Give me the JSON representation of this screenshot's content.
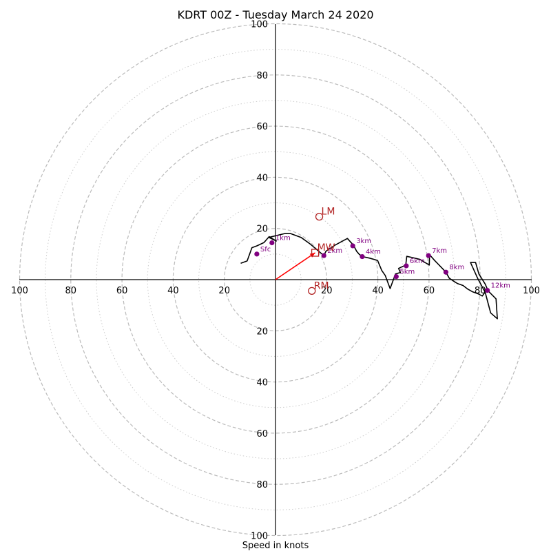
{
  "chart_data": {
    "type": "scatter",
    "subtype": "hodograph",
    "title": "KDRT 00Z - Tuesday March 24 2020",
    "xlabel": "Speed in knots",
    "ylabel": "",
    "units": "knots",
    "range": [
      -100,
      100
    ],
    "ring_major": [
      20,
      40,
      60,
      80,
      100
    ],
    "ring_minor": [
      10,
      30,
      50,
      70,
      90
    ],
    "axis_ticks": {
      "x": [
        "100",
        "80",
        "60",
        "40",
        "20",
        "20",
        "40",
        "60",
        "80",
        "100"
      ],
      "x_values": [
        -100,
        -80,
        -60,
        -40,
        -20,
        20,
        40,
        60,
        80,
        100
      ],
      "y": [
        "100",
        "80",
        "60",
        "40",
        "20",
        "20",
        "40",
        "60",
        "80",
        "100"
      ],
      "y_values": [
        100,
        80,
        60,
        40,
        20,
        -20,
        -40,
        -60,
        -80,
        -100
      ]
    },
    "colors": {
      "trace": "#000000",
      "height_marker": "#800080",
      "motion": "#b22222",
      "shear_vector": "#ff0000",
      "grid": "#bbbbbb"
    },
    "trace": [
      [
        -13.6,
        6.4
      ],
      [
        -11.1,
        7.3
      ],
      [
        -9.2,
        12.5
      ],
      [
        -7.3,
        13.2
      ],
      [
        -4.5,
        14.5
      ],
      [
        -2.5,
        16.8
      ],
      [
        0.3,
        15.1
      ],
      [
        -2.6,
        16.5
      ],
      [
        3.6,
        18.0
      ],
      [
        5.9,
        18.0
      ],
      [
        10.0,
        16.5
      ],
      [
        13.6,
        13.9
      ],
      [
        16.9,
        11.1
      ],
      [
        18.9,
        9.4
      ],
      [
        19.7,
        11.1
      ],
      [
        23.3,
        13.5
      ],
      [
        28.1,
        16.1
      ],
      [
        30.5,
        13.4
      ],
      [
        31.7,
        11.1
      ],
      [
        32.8,
        9.8
      ],
      [
        34.1,
        9.0
      ],
      [
        36.8,
        8.4
      ],
      [
        39.9,
        7.5
      ],
      [
        41.5,
        3.6
      ],
      [
        42.9,
        1.6
      ],
      [
        44.8,
        -3.5
      ],
      [
        46.9,
        2.2
      ],
      [
        48.8,
        2.8
      ],
      [
        48.1,
        4.4
      ],
      [
        50.9,
        5.7
      ],
      [
        51.3,
        9.1
      ],
      [
        53.7,
        8.6
      ],
      [
        56.5,
        7.9
      ],
      [
        58.6,
        6.6
      ],
      [
        60.1,
        5.7
      ],
      [
        60.2,
        9.8
      ],
      [
        62.1,
        7.6
      ],
      [
        65.2,
        4.4
      ],
      [
        66.6,
        2.9
      ],
      [
        67.9,
        0.6
      ],
      [
        69.6,
        -0.6
      ],
      [
        71.1,
        -1.5
      ],
      [
        73.3,
        -2.3
      ],
      [
        75.0,
        -3.6
      ],
      [
        77.1,
        -4.8
      ],
      [
        79.3,
        -5.6
      ],
      [
        80.8,
        -6.4
      ],
      [
        81.9,
        -4.9
      ],
      [
        79.0,
        0.5
      ],
      [
        76.2,
        6.7
      ],
      [
        78.2,
        6.7
      ],
      [
        79.5,
        2.2
      ],
      [
        82.0,
        -1.8
      ],
      [
        83.1,
        -4.4
      ],
      [
        86.2,
        -7.5
      ],
      [
        86.7,
        -15.3
      ],
      [
        84.1,
        -13.0
      ],
      [
        83.1,
        -9.3
      ],
      [
        82.0,
        -5.1
      ]
    ],
    "height_markers": [
      {
        "label": "Sfc",
        "u": -7.3,
        "v": 10.0
      },
      {
        "label": "1km",
        "u": -1.4,
        "v": 14.4
      },
      {
        "label": "2km",
        "u": 18.9,
        "v": 9.4
      },
      {
        "label": "3km",
        "u": 30.2,
        "v": 13.2
      },
      {
        "label": "4km",
        "u": 33.9,
        "v": 9.0
      },
      {
        "label": "5km",
        "u": 47.2,
        "v": 1.2
      },
      {
        "label": "6km",
        "u": 51.1,
        "v": 5.4
      },
      {
        "label": "7km",
        "u": 59.8,
        "v": 9.4
      },
      {
        "label": "8km",
        "u": 66.6,
        "v": 2.9
      },
      {
        "label": "12km",
        "u": 82.8,
        "v": -4.2
      }
    ],
    "storm_motion": [
      {
        "label": "LM",
        "u": 17.1,
        "v": 24.6,
        "marker": "circle"
      },
      {
        "label": "MW",
        "u": 15.5,
        "v": 10.5,
        "marker": "square"
      },
      {
        "label": "RM",
        "u": 14.2,
        "v": -4.4,
        "marker": "circle"
      }
    ],
    "shear_vector": {
      "from": [
        0,
        0
      ],
      "to": [
        15.5,
        10.5
      ]
    }
  }
}
